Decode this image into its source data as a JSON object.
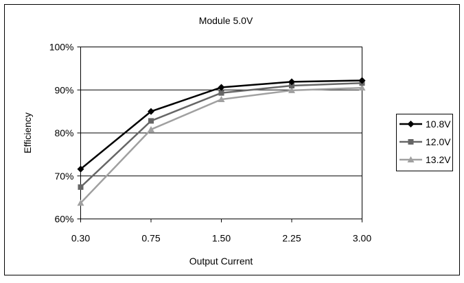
{
  "chart_data": {
    "type": "line",
    "title": "Module 5.0V",
    "xlabel": "Output Current",
    "ylabel": "Efficiency",
    "categories": [
      "0.30",
      "0.75",
      "1.50",
      "2.25",
      "3.00"
    ],
    "yticks": [
      "60%",
      "70%",
      "80%",
      "90%",
      "100%"
    ],
    "ylim": [
      60,
      100
    ],
    "grid": "horizontal",
    "legend_position": "right",
    "series": [
      {
        "name": "10.8V",
        "values": [
          71.6,
          85.0,
          90.6,
          91.9,
          92.2
        ],
        "color": "#000000",
        "marker": "diamond"
      },
      {
        "name": "12.0V",
        "values": [
          67.4,
          82.8,
          89.3,
          91.0,
          91.6
        ],
        "color": "#666666",
        "marker": "square"
      },
      {
        "name": "13.2V",
        "values": [
          63.7,
          80.8,
          87.8,
          89.9,
          90.5
        ],
        "color": "#a0a0a0",
        "marker": "triangle"
      }
    ]
  }
}
